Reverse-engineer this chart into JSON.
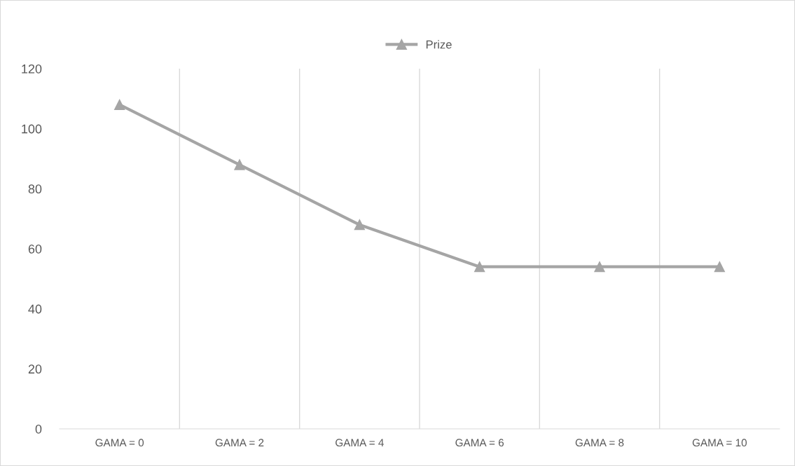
{
  "chart_data": {
    "type": "line",
    "categories": [
      "GAMA = 0",
      "GAMA = 2",
      "GAMA = 4",
      "GAMA = 6",
      "GAMA = 8",
      "GAMA = 10"
    ],
    "series": [
      {
        "name": "Prize",
        "color": "#a5a5a5",
        "values": [
          108,
          88,
          68,
          54,
          54,
          54
        ]
      }
    ],
    "ylim": [
      0,
      120
    ],
    "yticks": [
      0,
      20,
      40,
      60,
      80,
      100,
      120
    ],
    "grid": "x",
    "legend": "top",
    "marker": "triangle",
    "line_style": "solid"
  }
}
